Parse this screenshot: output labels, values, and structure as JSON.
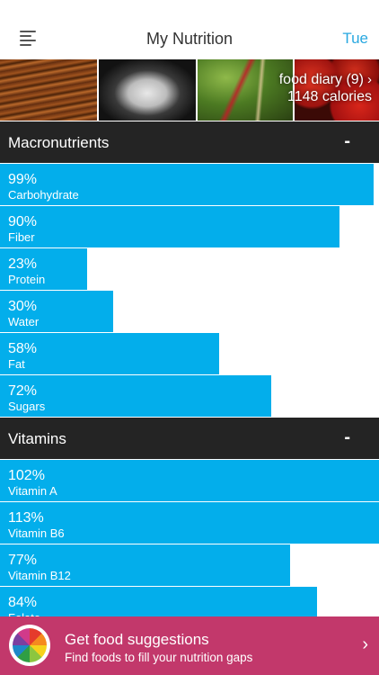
{
  "header": {
    "title": "My Nutrition",
    "day": "Tue"
  },
  "banner": {
    "diary_label": "food diary (9)",
    "calories": "1148 calories"
  },
  "sections": [
    {
      "title": "Macronutrients",
      "toggle": "-",
      "items": [
        {
          "percent": "99%",
          "name": "Carbohydrate",
          "level": 0.99
        },
        {
          "percent": "90%",
          "name": "Fiber",
          "level": 0.9
        },
        {
          "percent": "23%",
          "name": "Protein",
          "level": 0.23
        },
        {
          "percent": "30%",
          "name": "Water",
          "level": 0.3
        },
        {
          "percent": "58%",
          "name": "Fat",
          "level": 0.58
        },
        {
          "percent": "72%",
          "name": "Sugars",
          "level": 0.72
        }
      ]
    },
    {
      "title": "Vitamins",
      "toggle": "-",
      "items": [
        {
          "percent": "102%",
          "name": "Vitamin A",
          "level": 1.02
        },
        {
          "percent": "113%",
          "name": "Vitamin B6",
          "level": 1.13
        },
        {
          "percent": "77%",
          "name": "Vitamin B12",
          "level": 0.77
        },
        {
          "percent": "84%",
          "name": "Folate",
          "level": 0.84
        }
      ]
    }
  ],
  "promo": {
    "title": "Get food suggestions",
    "subtitle": "Find foods to fill your nutrition gaps"
  },
  "icons": {
    "menu": "hamburger-menu-icon",
    "chevron": "chevron-right-icon",
    "promo": "color-wheel-icon"
  },
  "colors": {
    "bar": "#03aeeb",
    "section_header": "#242424",
    "promo": "#c2386b",
    "accent": "#29a8e0"
  }
}
